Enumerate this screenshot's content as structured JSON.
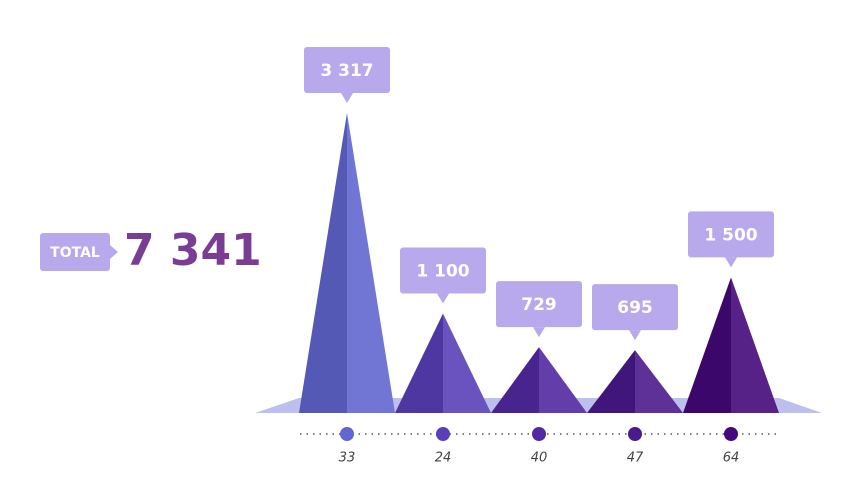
{
  "chart_data": {
    "type": "pyramid",
    "total_label": "TOTAL",
    "total_text": "7 341",
    "categories": [
      "33",
      "24",
      "40",
      "47",
      "64"
    ],
    "values": [
      3317,
      1100,
      729,
      695,
      1500
    ],
    "value_labels": [
      "3 317",
      "1 100",
      "729",
      "695",
      "1 500"
    ],
    "colors": [
      "#6166d0",
      "#5a3fb8",
      "#5229a2",
      "#4b1a8c",
      "#44097a"
    ],
    "label_color": "#b8a8ec",
    "total_color": "#7a3d94"
  }
}
